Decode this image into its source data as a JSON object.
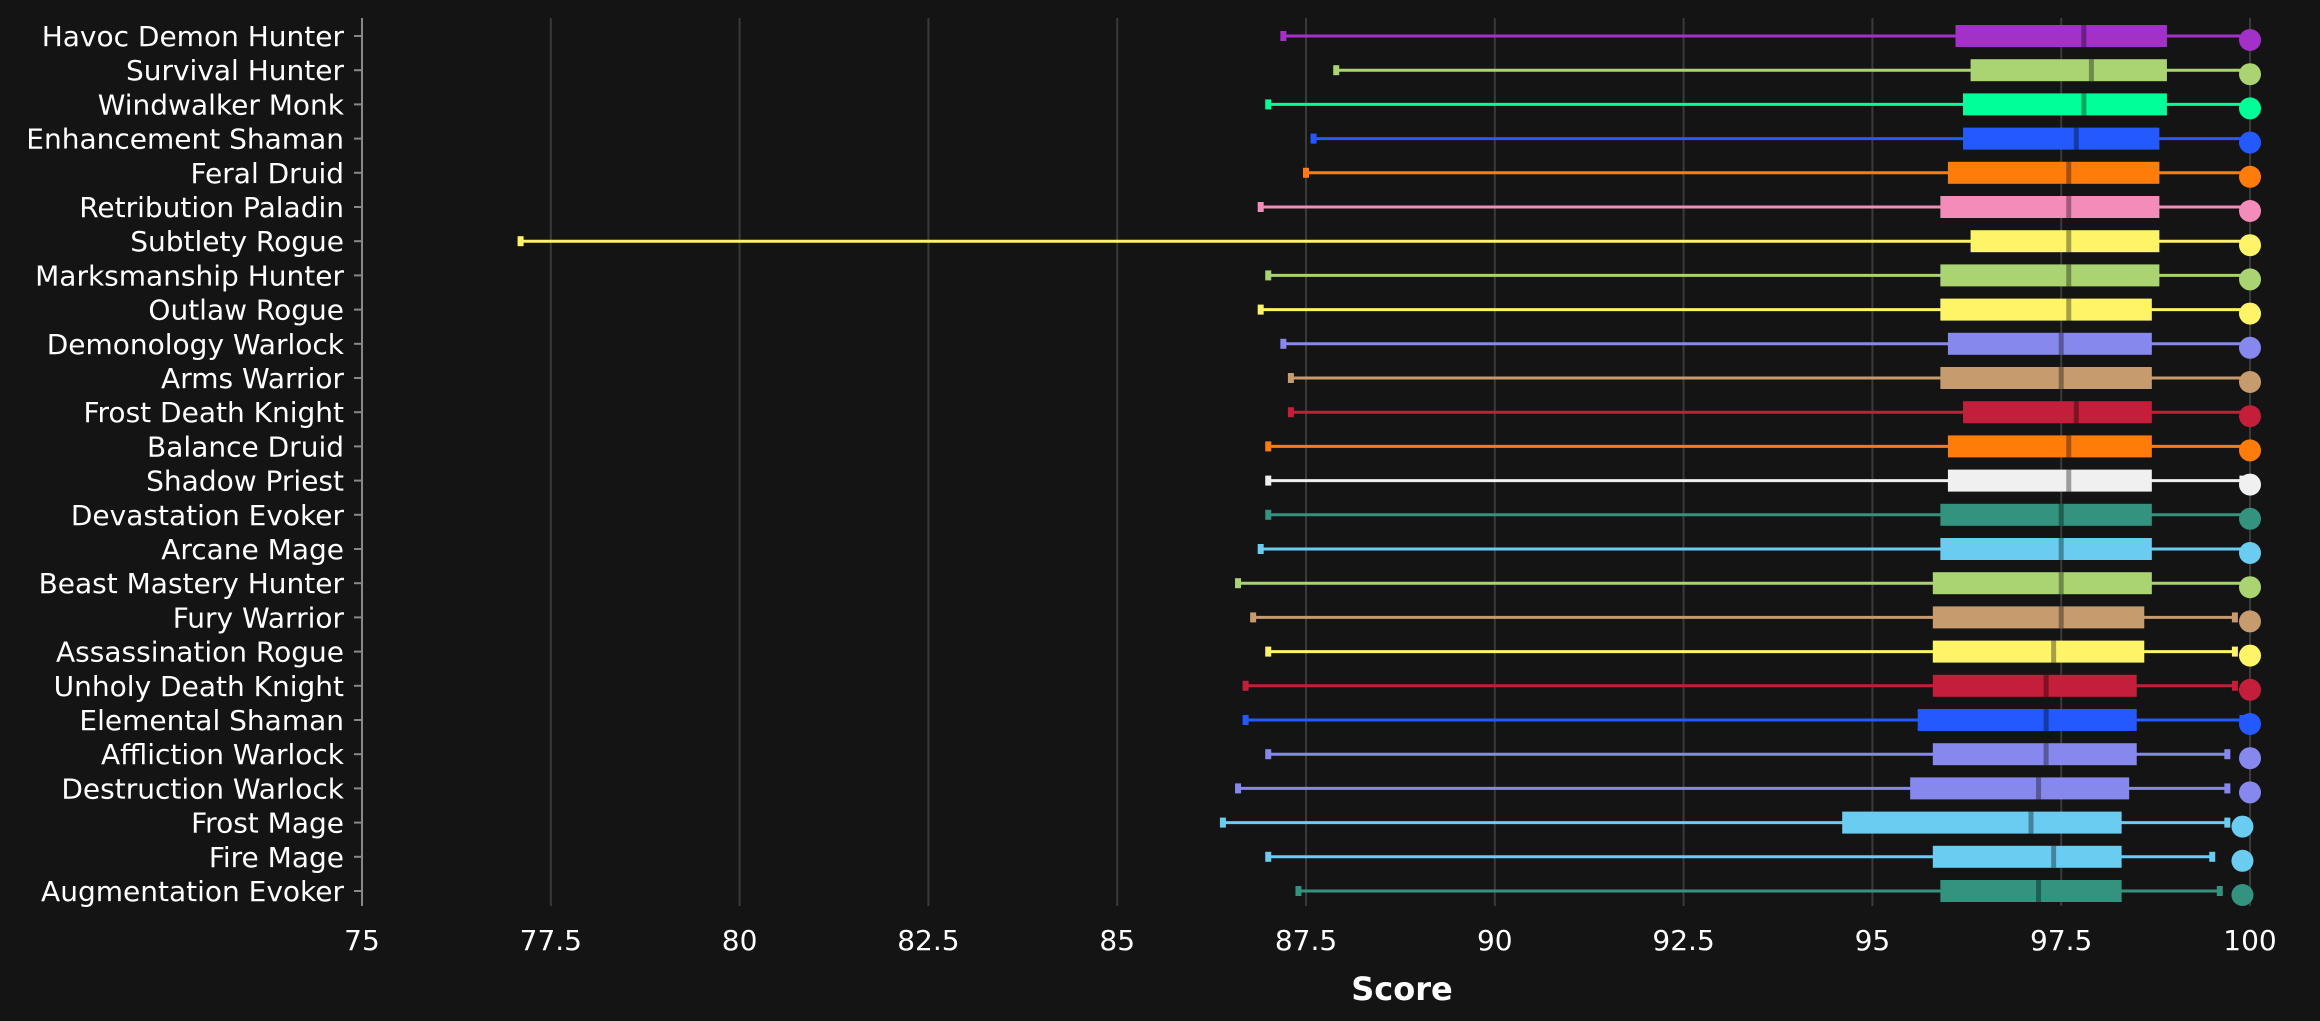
{
  "chart_data": {
    "type": "boxplot",
    "orientation": "horizontal",
    "xlabel": "Score",
    "xlim": [
      75,
      100
    ],
    "xticks": [
      75,
      77.5,
      80,
      82.5,
      85,
      87.5,
      90,
      92.5,
      95,
      97.5,
      100
    ],
    "xtick_labels": [
      "75",
      "77.5",
      "80",
      "82.5",
      "85",
      "87.5",
      "90",
      "92.5",
      "95",
      "97.5",
      "100"
    ],
    "grid": "vertical",
    "background": "#141414",
    "series": [
      {
        "name": "Havoc Demon Hunter",
        "color": "#a330c9",
        "min": 87.2,
        "q1": 96.1,
        "median": 97.8,
        "q3": 98.9,
        "max": 100,
        "marker": 100
      },
      {
        "name": "Survival Hunter",
        "color": "#aad372",
        "min": 87.9,
        "q1": 96.3,
        "median": 97.9,
        "q3": 98.9,
        "max": 100,
        "marker": 100
      },
      {
        "name": "Windwalker Monk",
        "color": "#00ff98",
        "min": 87.0,
        "q1": 96.2,
        "median": 97.8,
        "q3": 98.9,
        "max": 100,
        "marker": 100
      },
      {
        "name": "Enhancement Shaman",
        "color": "#2459ff",
        "min": 87.6,
        "q1": 96.2,
        "median": 97.7,
        "q3": 98.8,
        "max": 100,
        "marker": 100
      },
      {
        "name": "Feral Druid",
        "color": "#ff7c0a",
        "min": 87.5,
        "q1": 96.0,
        "median": 97.6,
        "q3": 98.8,
        "max": 100,
        "marker": 100
      },
      {
        "name": "Retribution Paladin",
        "color": "#f48cba",
        "min": 86.9,
        "q1": 95.9,
        "median": 97.6,
        "q3": 98.8,
        "max": 100,
        "marker": 100
      },
      {
        "name": "Subtlety Rogue",
        "color": "#fff468",
        "min": 77.1,
        "q1": 96.3,
        "median": 97.6,
        "q3": 98.8,
        "max": 100,
        "marker": 100
      },
      {
        "name": "Marksmanship Hunter",
        "color": "#aad372",
        "min": 87.0,
        "q1": 95.9,
        "median": 97.6,
        "q3": 98.8,
        "max": 100,
        "marker": 100
      },
      {
        "name": "Outlaw Rogue",
        "color": "#fff468",
        "min": 86.9,
        "q1": 95.9,
        "median": 97.6,
        "q3": 98.7,
        "max": 100,
        "marker": 100
      },
      {
        "name": "Demonology Warlock",
        "color": "#8788ee",
        "min": 87.2,
        "q1": 96.0,
        "median": 97.5,
        "q3": 98.7,
        "max": 100,
        "marker": 100
      },
      {
        "name": "Arms Warrior",
        "color": "#c69b6d",
        "min": 87.3,
        "q1": 95.9,
        "median": 97.5,
        "q3": 98.7,
        "max": 100,
        "marker": 100
      },
      {
        "name": "Frost Death Knight",
        "color": "#c41e3a",
        "min": 87.3,
        "q1": 96.2,
        "median": 97.7,
        "q3": 98.7,
        "max": 100,
        "marker": 100
      },
      {
        "name": "Balance Druid",
        "color": "#ff7c0a",
        "min": 87.0,
        "q1": 96.0,
        "median": 97.6,
        "q3": 98.7,
        "max": 100,
        "marker": 100
      },
      {
        "name": "Shadow Priest",
        "color": "#f0f0f0",
        "min": 87.0,
        "q1": 96.0,
        "median": 97.6,
        "q3": 98.7,
        "max": 99.9,
        "marker": 100
      },
      {
        "name": "Devastation Evoker",
        "color": "#33937f",
        "min": 87.0,
        "q1": 95.9,
        "median": 97.5,
        "q3": 98.7,
        "max": 100,
        "marker": 100
      },
      {
        "name": "Arcane Mage",
        "color": "#69ccf0",
        "min": 86.9,
        "q1": 95.9,
        "median": 97.5,
        "q3": 98.7,
        "max": 100,
        "marker": 100
      },
      {
        "name": "Beast Mastery Hunter",
        "color": "#aad372",
        "min": 86.6,
        "q1": 95.8,
        "median": 97.5,
        "q3": 98.7,
        "max": 100,
        "marker": 100
      },
      {
        "name": "Fury Warrior",
        "color": "#c69b6d",
        "min": 86.8,
        "q1": 95.8,
        "median": 97.5,
        "q3": 98.6,
        "max": 99.8,
        "marker": 100
      },
      {
        "name": "Assassination Rogue",
        "color": "#fff468",
        "min": 87.0,
        "q1": 95.8,
        "median": 97.4,
        "q3": 98.6,
        "max": 99.8,
        "marker": 100
      },
      {
        "name": "Unholy Death Knight",
        "color": "#c41e3a",
        "min": 86.7,
        "q1": 95.8,
        "median": 97.3,
        "q3": 98.5,
        "max": 99.8,
        "marker": 100
      },
      {
        "name": "Elemental Shaman",
        "color": "#2459ff",
        "min": 86.7,
        "q1": 95.6,
        "median": 97.3,
        "q3": 98.5,
        "max": 99.9,
        "marker": 100
      },
      {
        "name": "Affliction Warlock",
        "color": "#8788ee",
        "min": 87.0,
        "q1": 95.8,
        "median": 97.3,
        "q3": 98.5,
        "max": 99.7,
        "marker": 100
      },
      {
        "name": "Destruction Warlock",
        "color": "#8788ee",
        "min": 86.6,
        "q1": 95.5,
        "median": 97.2,
        "q3": 98.4,
        "max": 99.7,
        "marker": 100
      },
      {
        "name": "Frost Mage",
        "color": "#69ccf0",
        "min": 86.4,
        "q1": 94.6,
        "median": 97.1,
        "q3": 98.3,
        "max": 99.7,
        "marker": 99.9
      },
      {
        "name": "Fire Mage",
        "color": "#69ccf0",
        "min": 87.0,
        "q1": 95.8,
        "median": 97.4,
        "q3": 98.3,
        "max": 99.5,
        "marker": 99.9
      },
      {
        "name": "Augmentation Evoker",
        "color": "#33937f",
        "min": 87.4,
        "q1": 95.9,
        "median": 97.2,
        "q3": 98.3,
        "max": 99.6,
        "marker": 99.9
      }
    ]
  }
}
